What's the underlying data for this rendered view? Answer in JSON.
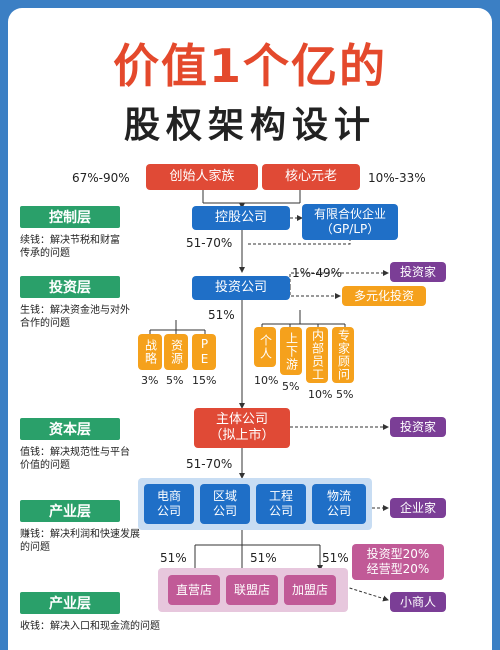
{
  "title_line1": "价值1个亿的",
  "title_line2": "股权架构设计",
  "top": {
    "left_pct": "67%-90%",
    "founder": "创始人家族",
    "core": "核心元老",
    "right_pct": "10%-33%"
  },
  "layers": [
    {
      "label": "控制层",
      "sub1": "续钱：解决节税和财富",
      "sub2": "传承的问题"
    },
    {
      "label": "投资层",
      "sub1": "生钱：解决资金池与对外",
      "sub2": "合作的问题"
    },
    {
      "label": "资本层",
      "sub1": "值钱：解决规范性与平台",
      "sub2": "价值的问题"
    },
    {
      "label": "产业层",
      "sub1": "赚钱：解决利润和快速发展",
      "sub2": "的问题"
    },
    {
      "label": "产业层",
      "sub1": "收钱：解决入口和现金流的问题",
      "sub2": ""
    }
  ],
  "holding": {
    "label": "控股公司",
    "gp": "有限合伙企业",
    "gp2": "（GP/LP）",
    "pct": "51-70%"
  },
  "investment": {
    "label": "投资公司",
    "right_pct": "1%-49%",
    "investor": "投资家",
    "diversified": "多元化投资",
    "left_pct": "51%",
    "left_boxes": [
      {
        "label": "战略",
        "pct": "3%"
      },
      {
        "label": "资源",
        "pct": "5%"
      },
      {
        "label": "PE",
        "pct": "15%"
      }
    ],
    "right_boxes": [
      {
        "label": "个人",
        "pct": "10%"
      },
      {
        "label": "上下游",
        "pct": "5%"
      },
      {
        "label": "内部员工",
        "pct": "10%"
      },
      {
        "label": "专家顾问",
        "pct": "5%"
      }
    ]
  },
  "main": {
    "line1": "主体公司",
    "line2": "（拟上市）",
    "investor": "投资家",
    "pct": "51-70%"
  },
  "industry": {
    "boxes": [
      {
        "l1": "电商",
        "l2": "公司"
      },
      {
        "l1": "区域",
        "l2": "公司"
      },
      {
        "l1": "工程",
        "l2": "公司"
      },
      {
        "l1": "物流",
        "l2": "公司"
      }
    ],
    "entrepreneur": "企业家"
  },
  "stores": {
    "pcts": [
      "51%",
      "51%",
      "51%"
    ],
    "items": [
      "直营店",
      "联盟店",
      "加盟店"
    ],
    "note1": "投资型20%",
    "note2": "经营型20%",
    "merchant": "小商人"
  },
  "colors": {
    "red": "#e04a36",
    "blue": "#1f6fc7",
    "green": "#2aa06a",
    "orange": "#f5a11c",
    "purple": "#7b3e96"
  }
}
